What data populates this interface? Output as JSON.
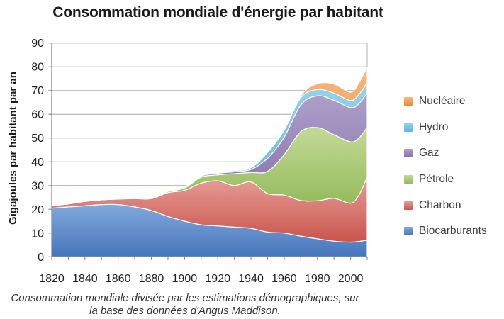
{
  "title": "Consommation mondiale d'énergie par habitant",
  "caption": {
    "line1": "Consommation mondiale divisée par les estimations démographiques, sur",
    "line2": "la base des données d'Angus Maddison."
  },
  "legend": {
    "position": "right",
    "items": [
      {
        "label": "Nucléaire",
        "series_index": 5
      },
      {
        "label": "Hydro",
        "series_index": 4
      },
      {
        "label": "Gaz",
        "series_index": 3
      },
      {
        "label": "Pétrole",
        "series_index": 2
      },
      {
        "label": "Charbon",
        "series_index": 1
      },
      {
        "label": "Biocarburants",
        "series_index": 0
      }
    ]
  },
  "chart_data": {
    "type": "area",
    "stacked": true,
    "title": "Consommation mondiale d'énergie par habitant",
    "xlabel": "",
    "ylabel": "Gigajoules par habitant par an",
    "unit": "gigajoules par habitant par an",
    "grid": "horizontal",
    "legend_position": "right",
    "ylim": [
      0,
      90
    ],
    "yticks": [
      90,
      80,
      70,
      60,
      50,
      40,
      30,
      20,
      10,
      0
    ],
    "xlim": [
      1820,
      2010
    ],
    "xticks_labeled": [
      1820,
      1840,
      1860,
      1880,
      1900,
      1920,
      1940,
      1960,
      1980,
      2000
    ],
    "xtick_minor_step": 10,
    "x": [
      1820,
      1830,
      1840,
      1850,
      1860,
      1870,
      1880,
      1890,
      1900,
      1910,
      1920,
      1930,
      1940,
      1950,
      1960,
      1970,
      1980,
      1990,
      2000,
      2005,
      2010
    ],
    "series": [
      {
        "name": "Biocarburants",
        "color": "#4675ba",
        "color_light": "#81a9dd",
        "values": [
          20.5,
          21.0,
          21.5,
          22.0,
          22.0,
          21.0,
          19.5,
          17.0,
          15.0,
          13.5,
          13.0,
          12.5,
          12.0,
          10.4,
          10.0,
          8.7,
          7.6,
          6.6,
          6.2,
          6.5,
          7.0
        ]
      },
      {
        "name": "Charbon",
        "color": "#c8554e",
        "color_light": "#e79d95",
        "values": [
          1.0,
          1.3,
          1.8,
          2.0,
          2.3,
          3.5,
          5.0,
          10.0,
          13.0,
          17.5,
          19.0,
          17.5,
          19.5,
          16.2,
          16.0,
          15.0,
          16.0,
          18.0,
          16.4,
          19.5,
          26.5
        ]
      },
      {
        "name": "Pétrole",
        "color": "#94ba5a",
        "color_light": "#c3da97",
        "values": [
          0,
          0,
          0,
          0,
          0.1,
          0.2,
          0.3,
          0.5,
          1.0,
          2.5,
          2.5,
          5.0,
          4.0,
          9.4,
          17.0,
          29.0,
          30.8,
          26.8,
          25.8,
          24.0,
          21.0
        ]
      },
      {
        "name": "Gaz",
        "color": "#8670ab",
        "color_light": "#ada0c9",
        "values": [
          0,
          0,
          0,
          0,
          0,
          0,
          0,
          0,
          0.2,
          0.5,
          0.7,
          0.8,
          1.3,
          5.5,
          7.4,
          11.2,
          13.4,
          14.5,
          14.4,
          14.5,
          14.5
        ]
      },
      {
        "name": "Hydro",
        "color": "#58b5dc",
        "color_light": "#97d3ed",
        "values": [
          0,
          0,
          0,
          0,
          0,
          0,
          0,
          0,
          0.1,
          0.2,
          0.3,
          0.5,
          0.7,
          2.5,
          3.0,
          3.1,
          2.6,
          3.0,
          3.0,
          3.8,
          4.3
        ]
      },
      {
        "name": "Nucléaire",
        "color": "#ee8a38",
        "color_light": "#f8b87c",
        "values": [
          0,
          0,
          0,
          0,
          0,
          0,
          0,
          0,
          0,
          0,
          0,
          0,
          0,
          0,
          0,
          0.8,
          2.5,
          3.8,
          3.5,
          5.0,
          6.5
        ]
      }
    ]
  },
  "colors": {
    "gridline": "#a9a9a9",
    "plot_border": "#b3b3b3",
    "axis": "#8c8c8c",
    "tick_label": "#1f1f1f",
    "background": "#ffffff"
  }
}
